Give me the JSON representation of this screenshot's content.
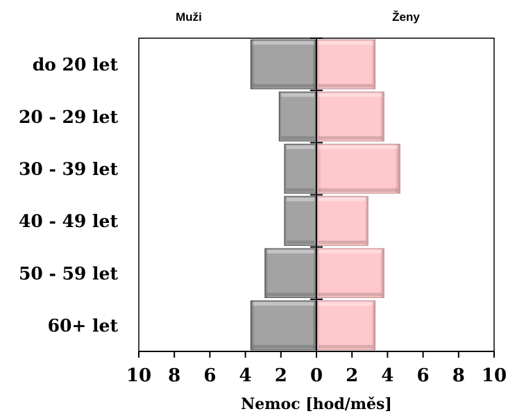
{
  "chart_data": {
    "type": "bar",
    "orientation": "horizontal-pyramid",
    "categories": [
      "do 20 let",
      "20 - 29 let",
      "30 - 39 let",
      "40 - 49 let",
      "50 - 59 let",
      "60+ let"
    ],
    "series": [
      {
        "name": "Muži",
        "values": [
          3.7,
          2.1,
          1.8,
          1.8,
          2.9,
          3.7
        ],
        "color": "#a6a6a6",
        "side": "left"
      },
      {
        "name": "Ženy",
        "values": [
          3.3,
          3.8,
          4.7,
          2.9,
          3.8,
          3.3
        ],
        "color": "#ffc9cc",
        "side": "right"
      }
    ],
    "xlabel": "Nemoc [hod/měs]",
    "xlim": [
      -10,
      10
    ],
    "ticks": [
      -10,
      -8,
      -6,
      -4,
      -2,
      0,
      2,
      4,
      6,
      8,
      10
    ],
    "tick_labels": [
      "10",
      "8",
      "6",
      "4",
      "2",
      "0",
      "2",
      "4",
      "6",
      "8",
      "10"
    ],
    "grid": false,
    "legend": "top (series names above each half)"
  }
}
